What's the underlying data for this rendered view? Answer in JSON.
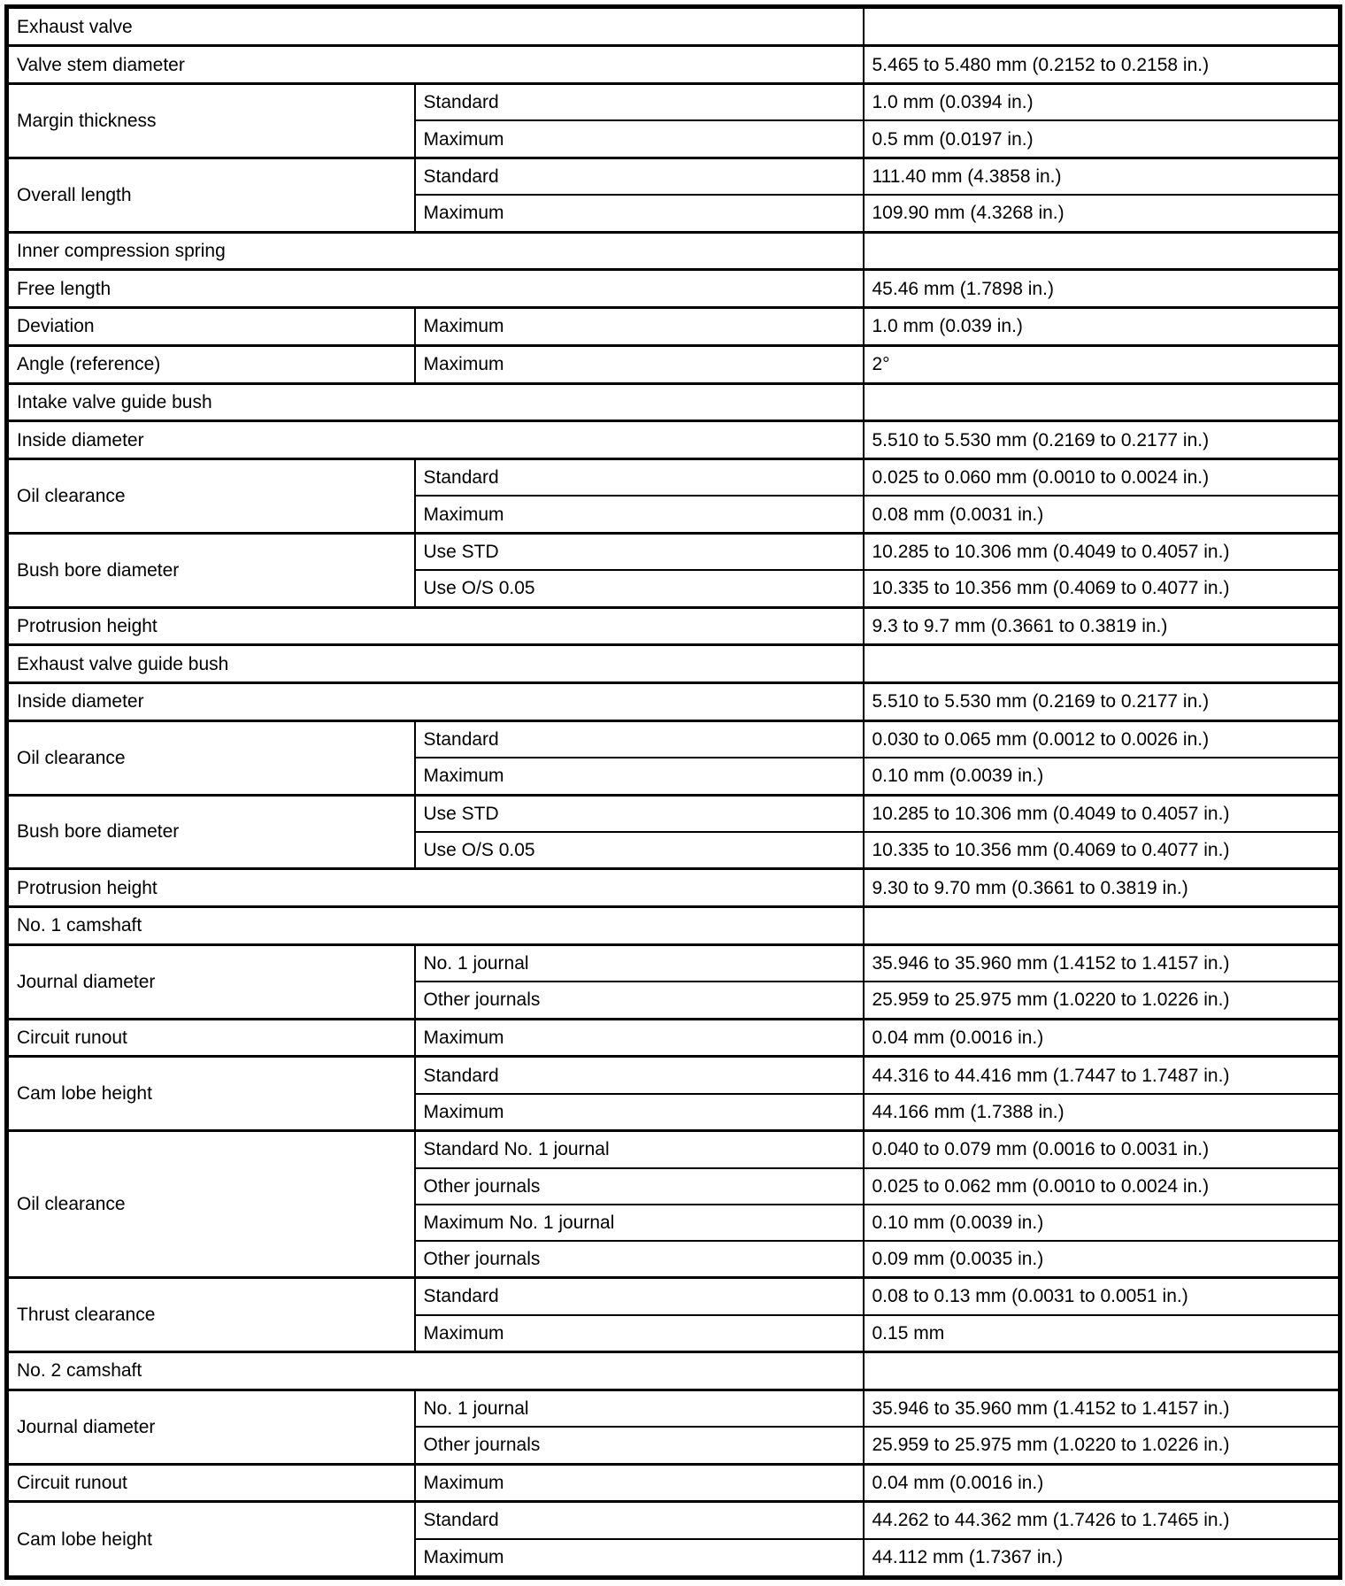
{
  "document": {
    "kind": "engine-valve-and-camshaft-specifications-table",
    "columns": [
      "parameter",
      "condition",
      "value"
    ]
  },
  "table": {
    "rows": [
      {
        "sub": false,
        "cells": [
          {
            "text": "Exhaust valve",
            "name": "section-header-cell",
            "colspan": 2
          },
          {
            "text": "",
            "name": "empty-cell"
          }
        ]
      },
      {
        "sub": false,
        "cells": [
          {
            "text": "Valve stem diameter",
            "name": "parameter-cell",
            "colspan": 2
          },
          {
            "text": "5.465 to 5.480 mm (0.2152 to 0.2158 in.)",
            "name": "value-cell"
          }
        ]
      },
      {
        "sub": false,
        "cells": [
          {
            "text": "Margin thickness",
            "name": "parameter-cell",
            "rowspan": 2
          },
          {
            "text": "Standard",
            "name": "condition-cell"
          },
          {
            "text": "1.0 mm (0.0394 in.)",
            "name": "value-cell"
          }
        ]
      },
      {
        "sub": true,
        "cells": [
          {
            "text": "Maximum",
            "name": "condition-cell"
          },
          {
            "text": "0.5 mm (0.0197 in.)",
            "name": "value-cell"
          }
        ]
      },
      {
        "sub": false,
        "cells": [
          {
            "text": "Overall length",
            "name": "parameter-cell",
            "rowspan": 2
          },
          {
            "text": "Standard",
            "name": "condition-cell"
          },
          {
            "text": "111.40 mm (4.3858 in.)",
            "name": "value-cell"
          }
        ]
      },
      {
        "sub": true,
        "cells": [
          {
            "text": "Maximum",
            "name": "condition-cell"
          },
          {
            "text": "109.90 mm (4.3268 in.)",
            "name": "value-cell"
          }
        ]
      },
      {
        "sub": false,
        "cells": [
          {
            "text": "Inner compression spring",
            "name": "section-header-cell",
            "colspan": 2
          },
          {
            "text": "",
            "name": "empty-cell"
          }
        ]
      },
      {
        "sub": false,
        "cells": [
          {
            "text": "Free length",
            "name": "parameter-cell",
            "colspan": 2
          },
          {
            "text": "45.46 mm (1.7898 in.)",
            "name": "value-cell"
          }
        ]
      },
      {
        "sub": false,
        "cells": [
          {
            "text": "Deviation",
            "name": "parameter-cell"
          },
          {
            "text": "Maximum",
            "name": "condition-cell"
          },
          {
            "text": "1.0 mm (0.039 in.)",
            "name": "value-cell"
          }
        ]
      },
      {
        "sub": false,
        "cells": [
          {
            "text": "Angle (reference)",
            "name": "parameter-cell"
          },
          {
            "text": "Maximum",
            "name": "condition-cell"
          },
          {
            "text": "2°",
            "name": "value-cell"
          }
        ]
      },
      {
        "sub": false,
        "cells": [
          {
            "text": "Intake valve guide bush",
            "name": "section-header-cell",
            "colspan": 2
          },
          {
            "text": "",
            "name": "empty-cell"
          }
        ]
      },
      {
        "sub": false,
        "cells": [
          {
            "text": "Inside diameter",
            "name": "parameter-cell",
            "colspan": 2
          },
          {
            "text": "5.510 to 5.530 mm (0.2169 to 0.2177 in.)",
            "name": "value-cell"
          }
        ]
      },
      {
        "sub": false,
        "cells": [
          {
            "text": "Oil clearance",
            "name": "parameter-cell",
            "rowspan": 2
          },
          {
            "text": "Standard",
            "name": "condition-cell"
          },
          {
            "text": "0.025 to 0.060 mm (0.0010 to 0.0024 in.)",
            "name": "value-cell"
          }
        ]
      },
      {
        "sub": true,
        "cells": [
          {
            "text": "Maximum",
            "name": "condition-cell"
          },
          {
            "text": "0.08 mm (0.0031 in.)",
            "name": "value-cell"
          }
        ]
      },
      {
        "sub": false,
        "cells": [
          {
            "text": "Bush bore diameter",
            "name": "parameter-cell",
            "rowspan": 2
          },
          {
            "text": "Use STD",
            "name": "condition-cell"
          },
          {
            "text": "10.285 to 10.306 mm (0.4049 to 0.4057 in.)",
            "name": "value-cell"
          }
        ]
      },
      {
        "sub": true,
        "cells": [
          {
            "text": "Use O/S 0.05",
            "name": "condition-cell"
          },
          {
            "text": "10.335 to 10.356 mm (0.4069 to 0.4077 in.)",
            "name": "value-cell"
          }
        ]
      },
      {
        "sub": false,
        "cells": [
          {
            "text": "Protrusion height",
            "name": "parameter-cell",
            "colspan": 2
          },
          {
            "text": "9.3 to 9.7 mm (0.3661 to 0.3819 in.)",
            "name": "value-cell"
          }
        ]
      },
      {
        "sub": false,
        "cells": [
          {
            "text": "Exhaust valve guide bush",
            "name": "section-header-cell",
            "colspan": 2
          },
          {
            "text": "",
            "name": "empty-cell"
          }
        ]
      },
      {
        "sub": false,
        "cells": [
          {
            "text": "Inside diameter",
            "name": "parameter-cell",
            "colspan": 2
          },
          {
            "text": "5.510 to 5.530 mm (0.2169 to 0.2177 in.)",
            "name": "value-cell"
          }
        ]
      },
      {
        "sub": false,
        "cells": [
          {
            "text": "Oil clearance",
            "name": "parameter-cell",
            "rowspan": 2
          },
          {
            "text": "Standard",
            "name": "condition-cell"
          },
          {
            "text": "0.030 to 0.065 mm (0.0012 to 0.0026 in.)",
            "name": "value-cell"
          }
        ]
      },
      {
        "sub": true,
        "cells": [
          {
            "text": "Maximum",
            "name": "condition-cell"
          },
          {
            "text": "0.10 mm (0.0039 in.)",
            "name": "value-cell"
          }
        ]
      },
      {
        "sub": false,
        "cells": [
          {
            "text": "Bush bore diameter",
            "name": "parameter-cell",
            "rowspan": 2
          },
          {
            "text": "Use STD",
            "name": "condition-cell"
          },
          {
            "text": "10.285 to 10.306 mm (0.4049 to 0.4057 in.)",
            "name": "value-cell"
          }
        ]
      },
      {
        "sub": true,
        "cells": [
          {
            "text": "Use O/S 0.05",
            "name": "condition-cell"
          },
          {
            "text": "10.335 to 10.356 mm (0.4069 to 0.4077 in.)",
            "name": "value-cell"
          }
        ]
      },
      {
        "sub": false,
        "cells": [
          {
            "text": "Protrusion height",
            "name": "parameter-cell",
            "colspan": 2
          },
          {
            "text": "9.30 to 9.70 mm (0.3661 to 0.3819 in.)",
            "name": "value-cell"
          }
        ]
      },
      {
        "sub": false,
        "cells": [
          {
            "text": "No. 1 camshaft",
            "name": "section-header-cell",
            "colspan": 2
          },
          {
            "text": "",
            "name": "empty-cell"
          }
        ]
      },
      {
        "sub": false,
        "cells": [
          {
            "text": "Journal diameter",
            "name": "parameter-cell",
            "rowspan": 2
          },
          {
            "text": "No. 1 journal",
            "name": "condition-cell"
          },
          {
            "text": "35.946 to 35.960 mm (1.4152 to 1.4157 in.)",
            "name": "value-cell"
          }
        ]
      },
      {
        "sub": true,
        "cells": [
          {
            "text": "Other journals",
            "name": "condition-cell"
          },
          {
            "text": "25.959 to 25.975 mm (1.0220 to 1.0226 in.)",
            "name": "value-cell"
          }
        ]
      },
      {
        "sub": false,
        "cells": [
          {
            "text": "Circuit runout",
            "name": "parameter-cell"
          },
          {
            "text": "Maximum",
            "name": "condition-cell"
          },
          {
            "text": "0.04 mm (0.0016 in.)",
            "name": "value-cell"
          }
        ]
      },
      {
        "sub": false,
        "cells": [
          {
            "text": "Cam lobe height",
            "name": "parameter-cell",
            "rowspan": 2
          },
          {
            "text": "Standard",
            "name": "condition-cell"
          },
          {
            "text": "44.316 to 44.416 mm (1.7447 to 1.7487 in.)",
            "name": "value-cell"
          }
        ]
      },
      {
        "sub": true,
        "cells": [
          {
            "text": "Maximum",
            "name": "condition-cell"
          },
          {
            "text": "44.166 mm (1.7388 in.)",
            "name": "value-cell"
          }
        ]
      },
      {
        "sub": false,
        "cells": [
          {
            "text": "Oil clearance",
            "name": "parameter-cell",
            "rowspan": 4
          },
          {
            "text": "Standard No. 1 journal",
            "name": "condition-cell"
          },
          {
            "text": "0.040 to 0.079 mm (0.0016 to 0.0031 in.)",
            "name": "value-cell"
          }
        ]
      },
      {
        "sub": true,
        "cells": [
          {
            "text": "Other journals",
            "name": "condition-cell"
          },
          {
            "text": "0.025 to 0.062 mm (0.0010 to 0.0024 in.)",
            "name": "value-cell"
          }
        ]
      },
      {
        "sub": true,
        "cells": [
          {
            "text": "Maximum No. 1 journal",
            "name": "condition-cell"
          },
          {
            "text": "0.10 mm (0.0039 in.)",
            "name": "value-cell"
          }
        ]
      },
      {
        "sub": true,
        "cells": [
          {
            "text": "Other journals",
            "name": "condition-cell"
          },
          {
            "text": "0.09 mm (0.0035 in.)",
            "name": "value-cell"
          }
        ]
      },
      {
        "sub": false,
        "cells": [
          {
            "text": "Thrust clearance",
            "name": "parameter-cell",
            "rowspan": 2
          },
          {
            "text": "Standard",
            "name": "condition-cell"
          },
          {
            "text": "0.08 to 0.13 mm (0.0031 to 0.0051 in.)",
            "name": "value-cell"
          }
        ]
      },
      {
        "sub": true,
        "cells": [
          {
            "text": "Maximum",
            "name": "condition-cell"
          },
          {
            "text": "0.15 mm",
            "name": "value-cell"
          }
        ]
      },
      {
        "sub": false,
        "cells": [
          {
            "text": "No. 2 camshaft",
            "name": "section-header-cell",
            "colspan": 2
          },
          {
            "text": "",
            "name": "empty-cell"
          }
        ]
      },
      {
        "sub": false,
        "cells": [
          {
            "text": "Journal diameter",
            "name": "parameter-cell",
            "rowspan": 2
          },
          {
            "text": "No. 1 journal",
            "name": "condition-cell"
          },
          {
            "text": "35.946 to 35.960 mm (1.4152 to 1.4157 in.)",
            "name": "value-cell"
          }
        ]
      },
      {
        "sub": true,
        "cells": [
          {
            "text": "Other journals",
            "name": "condition-cell"
          },
          {
            "text": "25.959 to 25.975 mm (1.0220 to 1.0226 in.)",
            "name": "value-cell"
          }
        ]
      },
      {
        "sub": false,
        "cells": [
          {
            "text": "Circuit runout",
            "name": "parameter-cell"
          },
          {
            "text": "Maximum",
            "name": "condition-cell"
          },
          {
            "text": "0.04 mm (0.0016 in.)",
            "name": "value-cell"
          }
        ]
      },
      {
        "sub": false,
        "cells": [
          {
            "text": "Cam lobe height",
            "name": "parameter-cell",
            "rowspan": 2
          },
          {
            "text": "Standard",
            "name": "condition-cell"
          },
          {
            "text": "44.262 to 44.362 mm (1.7426 to 1.7465 in.)",
            "name": "value-cell"
          }
        ]
      },
      {
        "sub": true,
        "cells": [
          {
            "text": "Maximum",
            "name": "condition-cell"
          },
          {
            "text": "44.112 mm (1.7367 in.)",
            "name": "value-cell"
          }
        ]
      }
    ]
  }
}
